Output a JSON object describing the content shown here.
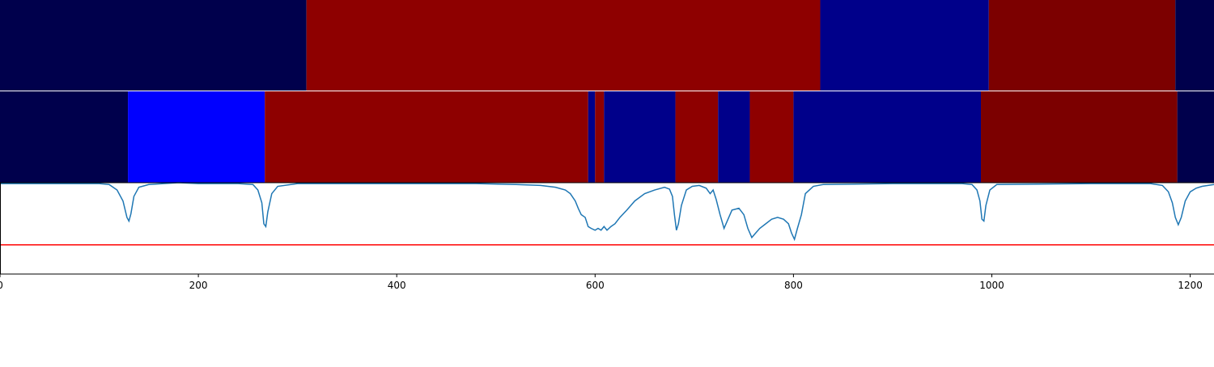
{
  "chart_data": {
    "type": "heatmap",
    "title": "",
    "xlabel": "",
    "ylabel": "",
    "xlim": [
      0,
      1224
    ],
    "xticks": [
      0,
      200,
      400,
      600,
      800,
      1000,
      1200
    ],
    "grid": false,
    "segment_tracks": [
      {
        "segments": [
          {
            "start": 0,
            "end": 309,
            "color": "#00004c"
          },
          {
            "start": 309,
            "end": 827,
            "color": "#8e0000"
          },
          {
            "start": 827,
            "end": 997,
            "color": "#00008a"
          },
          {
            "start": 997,
            "end": 1185,
            "color": "#7c0000"
          },
          {
            "start": 1185,
            "end": 1224,
            "color": "#00004c"
          }
        ]
      },
      {
        "segments": [
          {
            "start": 0,
            "end": 129,
            "color": "#00004c"
          },
          {
            "start": 129,
            "end": 267,
            "color": "#0000ff"
          },
          {
            "start": 267,
            "end": 593,
            "color": "#8e0000"
          },
          {
            "start": 593,
            "end": 600,
            "color": "#00008a"
          },
          {
            "start": 600,
            "end": 609,
            "color": "#8e0000"
          },
          {
            "start": 609,
            "end": 681,
            "color": "#00008a"
          },
          {
            "start": 681,
            "end": 724,
            "color": "#8e0000"
          },
          {
            "start": 724,
            "end": 756,
            "color": "#00008a"
          },
          {
            "start": 756,
            "end": 800,
            "color": "#8e0000"
          },
          {
            "start": 800,
            "end": 989,
            "color": "#00008a"
          },
          {
            "start": 989,
            "end": 1187,
            "color": "#7c0000"
          },
          {
            "start": 1187,
            "end": 1224,
            "color": "#00004c"
          }
        ]
      }
    ],
    "signal": {
      "color": "#1f77b4",
      "ylim": [
        0,
        1.0
      ],
      "points": [
        [
          0,
          0.01
        ],
        [
          100,
          0.01
        ],
        [
          110,
          0.02
        ],
        [
          118,
          0.08
        ],
        [
          124,
          0.2
        ],
        [
          128,
          0.38
        ],
        [
          130,
          0.42
        ],
        [
          132,
          0.34
        ],
        [
          135,
          0.15
        ],
        [
          140,
          0.05
        ],
        [
          150,
          0.02
        ],
        [
          180,
          0.0
        ],
        [
          200,
          0.01
        ],
        [
          240,
          0.01
        ],
        [
          255,
          0.02
        ],
        [
          260,
          0.08
        ],
        [
          264,
          0.22
        ],
        [
          266,
          0.45
        ],
        [
          268,
          0.48
        ],
        [
          270,
          0.32
        ],
        [
          274,
          0.12
        ],
        [
          280,
          0.04
        ],
        [
          300,
          0.01
        ],
        [
          400,
          0.01
        ],
        [
          480,
          0.01
        ],
        [
          520,
          0.02
        ],
        [
          545,
          0.03
        ],
        [
          560,
          0.05
        ],
        [
          570,
          0.08
        ],
        [
          575,
          0.12
        ],
        [
          580,
          0.2
        ],
        [
          583,
          0.28
        ],
        [
          586,
          0.35
        ],
        [
          590,
          0.38
        ],
        [
          593,
          0.48
        ],
        [
          596,
          0.5
        ],
        [
          600,
          0.52
        ],
        [
          603,
          0.5
        ],
        [
          606,
          0.52
        ],
        [
          609,
          0.48
        ],
        [
          612,
          0.52
        ],
        [
          616,
          0.48
        ],
        [
          620,
          0.45
        ],
        [
          625,
          0.38
        ],
        [
          632,
          0.3
        ],
        [
          640,
          0.2
        ],
        [
          650,
          0.12
        ],
        [
          660,
          0.08
        ],
        [
          670,
          0.05
        ],
        [
          675,
          0.07
        ],
        [
          678,
          0.15
        ],
        [
          680,
          0.35
        ],
        [
          682,
          0.52
        ],
        [
          684,
          0.45
        ],
        [
          687,
          0.25
        ],
        [
          692,
          0.08
        ],
        [
          698,
          0.04
        ],
        [
          705,
          0.03
        ],
        [
          712,
          0.06
        ],
        [
          716,
          0.12
        ],
        [
          719,
          0.08
        ],
        [
          722,
          0.18
        ],
        [
          726,
          0.35
        ],
        [
          730,
          0.5
        ],
        [
          734,
          0.4
        ],
        [
          738,
          0.3
        ],
        [
          745,
          0.28
        ],
        [
          750,
          0.35
        ],
        [
          754,
          0.5
        ],
        [
          758,
          0.6
        ],
        [
          762,
          0.55
        ],
        [
          766,
          0.5
        ],
        [
          772,
          0.45
        ],
        [
          778,
          0.4
        ],
        [
          784,
          0.38
        ],
        [
          790,
          0.4
        ],
        [
          795,
          0.45
        ],
        [
          798,
          0.55
        ],
        [
          801,
          0.62
        ],
        [
          804,
          0.5
        ],
        [
          808,
          0.35
        ],
        [
          812,
          0.12
        ],
        [
          820,
          0.04
        ],
        [
          830,
          0.02
        ],
        [
          900,
          0.01
        ],
        [
          970,
          0.01
        ],
        [
          980,
          0.02
        ],
        [
          985,
          0.08
        ],
        [
          988,
          0.2
        ],
        [
          990,
          0.4
        ],
        [
          992,
          0.42
        ],
        [
          994,
          0.25
        ],
        [
          998,
          0.08
        ],
        [
          1005,
          0.02
        ],
        [
          1100,
          0.01
        ],
        [
          1160,
          0.01
        ],
        [
          1172,
          0.03
        ],
        [
          1178,
          0.1
        ],
        [
          1182,
          0.22
        ],
        [
          1185,
          0.38
        ],
        [
          1188,
          0.46
        ],
        [
          1191,
          0.38
        ],
        [
          1195,
          0.2
        ],
        [
          1200,
          0.1
        ],
        [
          1206,
          0.06
        ],
        [
          1212,
          0.04
        ],
        [
          1218,
          0.03
        ],
        [
          1224,
          0.02
        ]
      ]
    },
    "threshold": {
      "value": 0.68,
      "color": "#ff0000"
    }
  }
}
